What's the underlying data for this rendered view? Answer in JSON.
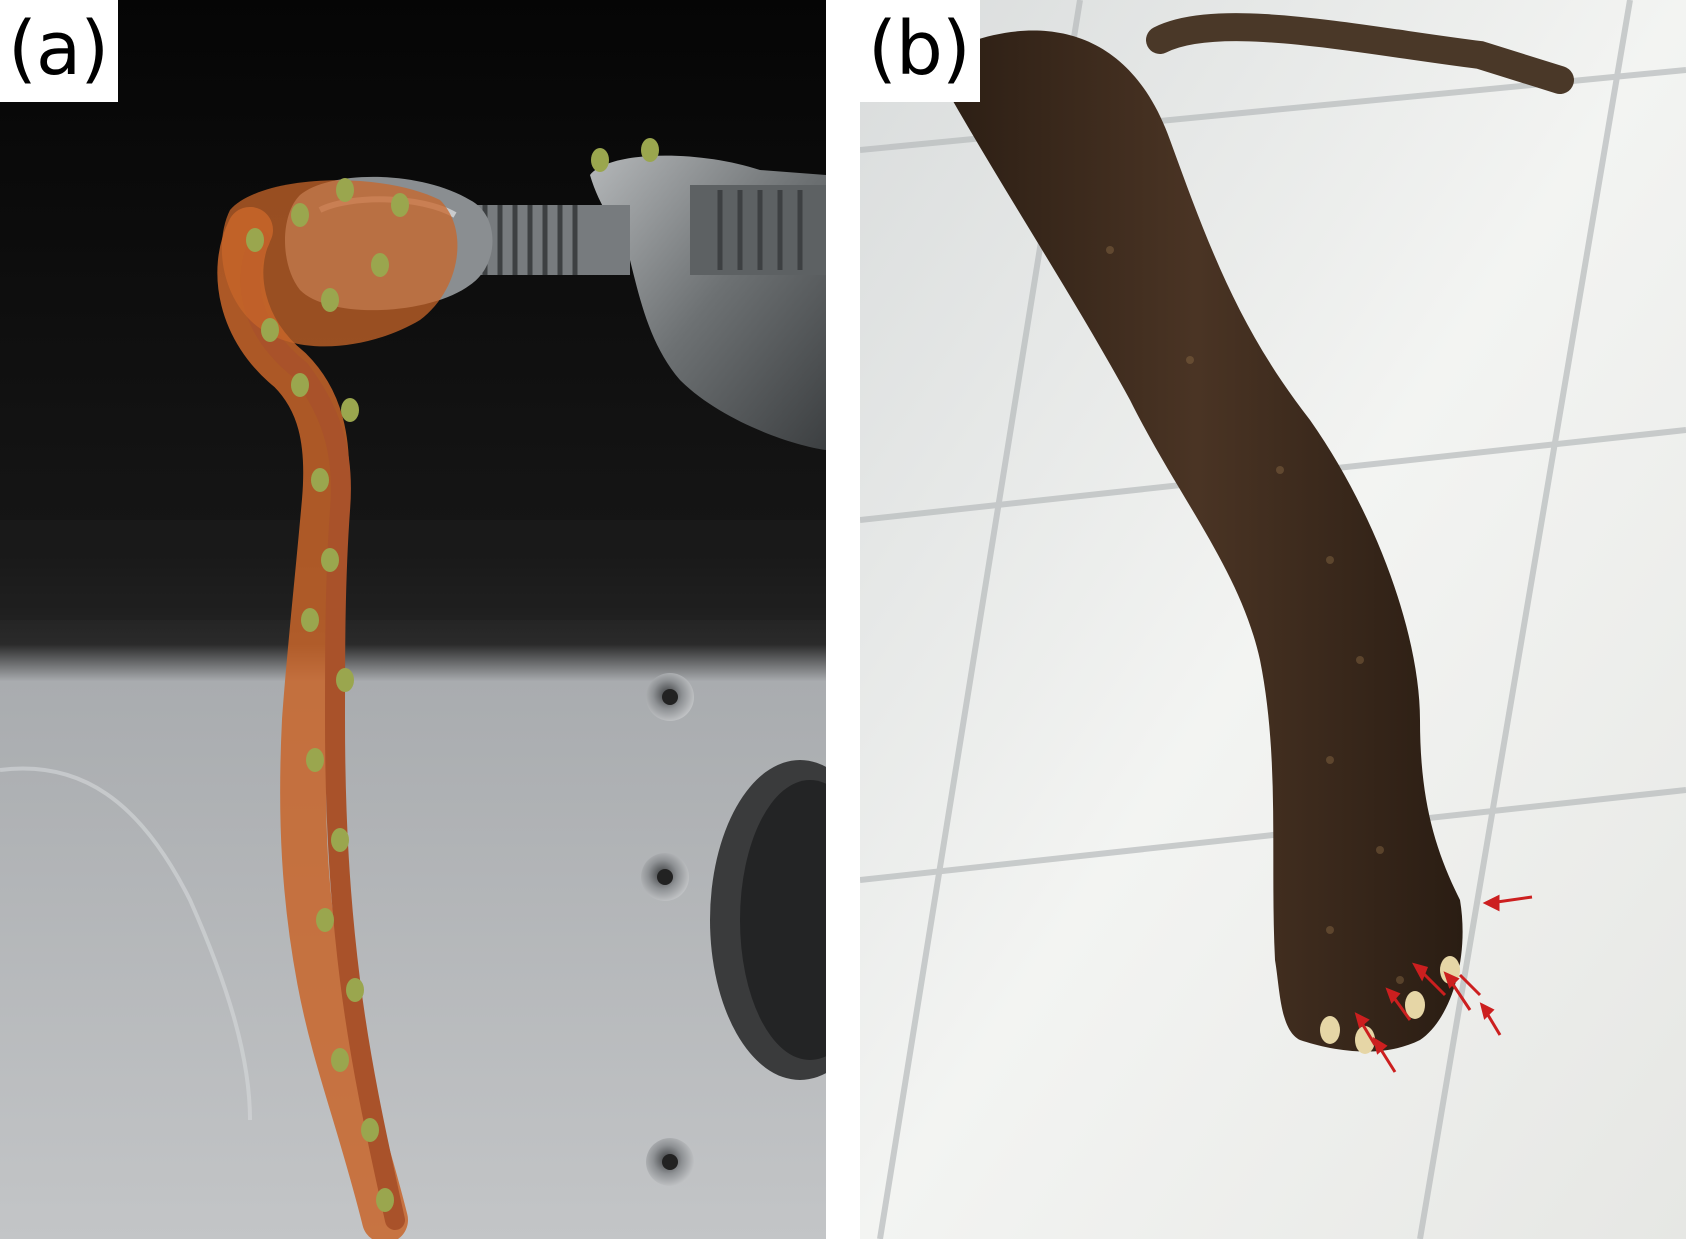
{
  "panels": [
    {
      "label": "(a)"
    },
    {
      "label": "(b)"
    }
  ],
  "colors": {
    "ant_orange": "#c8652a",
    "ant_green": "#9aa64e",
    "dark_background": "#0b0b0b",
    "metal_panel": "#b9bcbf",
    "clamp_metal": "#7f8386",
    "ant_column_brown": "#3a2a1c",
    "arrow_red": "#cc1f1f"
  },
  "icons": {
    "panel_a": "photo-ant-chain-on-clamp",
    "panel_b": "photo-ant-tower-hanging",
    "markers": "red-arrow"
  }
}
